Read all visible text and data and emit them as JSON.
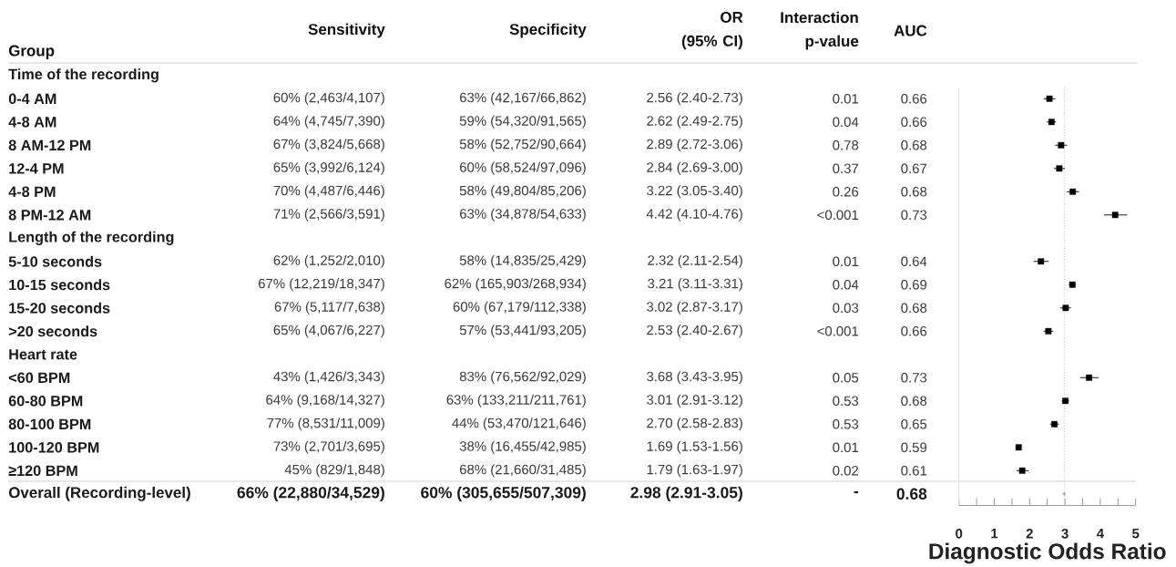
{
  "chart_data": [
    {
      "type": "other",
      "ylabel": "Group",
      "categories": [
        "Sensitivity",
        "Specificity",
        "OR (95% CI)",
        "Interaction p-value",
        "AUC"
      ],
      "y_categories": [
        "Time of the recording",
        "0-4 AM",
        "4-8 AM",
        "8 AM-12 PM",
        "12-4 PM",
        "4-8 PM",
        "8 PM-12 AM",
        "Length of the recording",
        "5-10 seconds",
        "10-15 seconds",
        "15-20 seconds",
        ">20 seconds",
        "Heart rate",
        "<60 BPM",
        "60-80 BPM",
        "80-100 BPM",
        "100-120 BPM",
        "≥120 BPM",
        "Overall (Recording-level)"
      ],
      "cell_labels": [
        [
          null,
          null,
          null,
          null,
          null
        ],
        [
          "60% (2,463/4,107)",
          "63% (42,167/66,862)",
          "2.56 (2.40-2.73)",
          "0.01",
          "0.66"
        ],
        [
          "64% (4,745/7,390)",
          "59% (54,320/91,565)",
          "2.62 (2.49-2.75)",
          "0.04",
          "0.66"
        ],
        [
          "67% (3,824/5,668)",
          "58% (52,752/90,664)",
          "2.89 (2.72-3.06)",
          "0.78",
          "0.68"
        ],
        [
          "65% (3,992/6,124)",
          "60% (58,524/97,096)",
          "2.84 (2.69-3.00)",
          "0.37",
          "0.67"
        ],
        [
          "70% (4,487/6,446)",
          "58% (49,804/85,206)",
          "3.22 (3.05-3.40)",
          "0.26",
          "0.68"
        ],
        [
          "71% (2,566/3,591)",
          "63% (34,878/54,633)",
          "4.42 (4.10-4.76)",
          "<0.001",
          "0.73"
        ],
        [
          null,
          null,
          null,
          null,
          null
        ],
        [
          "62% (1,252/2,010)",
          "58% (14,835/25,429)",
          "2.32 (2.11-2.54)",
          "0.01",
          "0.64"
        ],
        [
          "67% (12,219/18,347)",
          "62% (165,903/268,934)",
          "3.21 (3.11-3.31)",
          "0.04",
          "0.69"
        ],
        [
          "67% (5,117/7,638)",
          "60% (67,179/112,338)",
          "3.02 (2.87-3.17)",
          "0.03",
          "0.68"
        ],
        [
          "65% (4,067/6,227)",
          "57% (53,441/93,205)",
          "2.53 (2.40-2.67)",
          "<0.001",
          "0.66"
        ],
        [
          null,
          null,
          null,
          null,
          null
        ],
        [
          "43% (1,426/3,343)",
          "83% (76,562/92,029)",
          "3.68 (3.43-3.95)",
          "0.05",
          "0.73"
        ],
        [
          "64% (9,168/14,327)",
          "63% (133,211/211,761)",
          "3.01 (2.91-3.12)",
          "0.53",
          "0.68"
        ],
        [
          "77% (8,531/11,009)",
          "44% (53,470/121,646)",
          "2.70 (2.58-2.83)",
          "0.53",
          "0.65"
        ],
        [
          "73% (2,701/3,695)",
          "38% (16,455/42,985)",
          "1.69 (1.53-1.56)",
          "0.01",
          "0.59"
        ],
        [
          "45% (829/1,848)",
          "68% (21,660/31,485)",
          "1.79 (1.63-1.97)",
          "0.02",
          "0.61"
        ],
        [
          "66% (22,880/34,529)",
          "60% (305,655/507,309)",
          "2.98 (2.91-3.05)",
          "-",
          "0.68"
        ]
      ]
    },
    {
      "type": "scatter",
      "orientation": "horizontal",
      "xlabel": "Diagnostic Odds Ratio",
      "categories": [
        null,
        null,
        null,
        null,
        null,
        null,
        null,
        null,
        null,
        null,
        null,
        null,
        null,
        null,
        null,
        null,
        null,
        null
      ],
      "series": [
        {
          "color": "#000000",
          "marker": "square",
          "values": [
            2.56,
            2.62,
            2.89,
            2.84,
            3.22,
            4.42,
            null,
            2.32,
            3.21,
            3.02,
            2.53,
            null,
            3.68,
            3.01,
            2.7,
            1.69,
            1.79,
            null
          ],
          "errors": [
            [
              2.4,
              2.73
            ],
            [
              2.49,
              2.75
            ],
            [
              2.72,
              3.06
            ],
            [
              2.69,
              3.0
            ],
            [
              3.05,
              3.4
            ],
            [
              4.1,
              4.76
            ],
            null,
            [
              2.11,
              2.54
            ],
            [
              3.11,
              3.31
            ],
            [
              2.87,
              3.17
            ],
            [
              2.4,
              2.67
            ],
            null,
            [
              3.43,
              3.95
            ],
            [
              2.91,
              3.12
            ],
            [
              2.58,
              2.83
            ],
            null,
            [
              1.63,
              1.97
            ],
            null
          ]
        },
        {
          "color": "#a8a8a8",
          "marker": "diamond",
          "values": [
            null,
            null,
            null,
            null,
            null,
            null,
            null,
            null,
            null,
            null,
            null,
            null,
            null,
            null,
            null,
            null,
            null,
            2.98
          ]
        }
      ],
      "xlim": [
        0,
        5
      ],
      "xticks": [
        0,
        {
          "value": 0.5,
          "label": null
        },
        1,
        {
          "value": 1.5,
          "label": null
        },
        2,
        {
          "value": 2.5,
          "label": null
        },
        3,
        {
          "value": 3.5,
          "label": null
        },
        4,
        {
          "value": 4.5,
          "label": null
        },
        5
      ],
      "ref_lines": [
        {
          "axis": "x",
          "value": 2.98,
          "color": "#c4c4c4",
          "line_style": "dotted"
        }
      ],
      "tick_labels": "x"
    }
  ]
}
